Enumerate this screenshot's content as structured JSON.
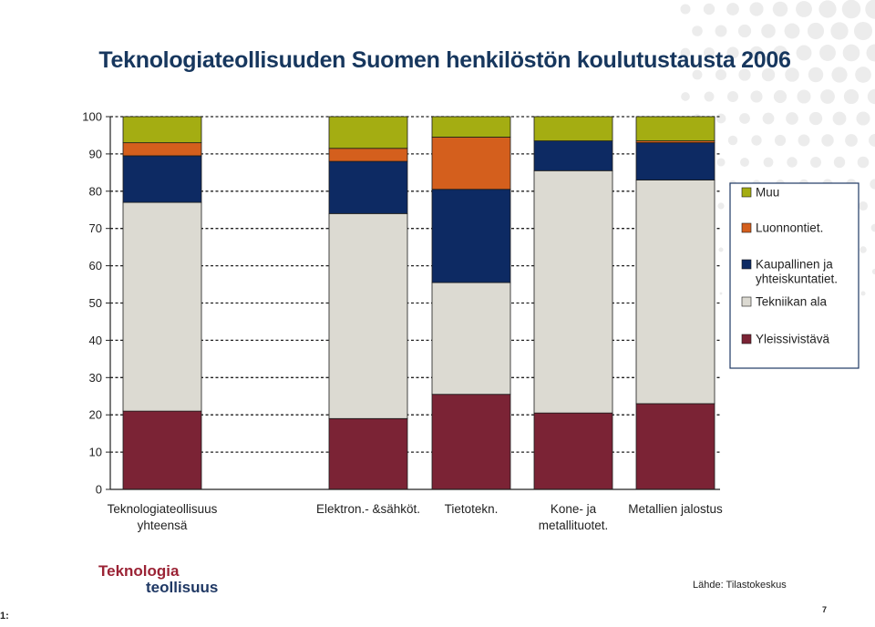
{
  "page": {
    "title": "Teknologiateollisuuden Suomen henkilöstön koulutustausta 2006",
    "source": "Lähde: Tilastokeskus",
    "page_number": "7",
    "corner_marker": "1:",
    "logo": {
      "line1": "Teknologia",
      "line2": "teollisuus"
    }
  },
  "chart_data": {
    "type": "bar",
    "stacked": true,
    "title": "Teknologiateollisuuden Suomen henkilöstön koulutustausta 2006",
    "xlabel": "",
    "ylabel": "",
    "ylim": [
      0,
      100
    ],
    "yticks": [
      0,
      10,
      20,
      30,
      40,
      50,
      60,
      70,
      80,
      90,
      100
    ],
    "grid": true,
    "legend_position": "right",
    "categories": [
      [
        "Teknologiateollisuus",
        "yhteensä"
      ],
      [
        "Elektron.- &sähköt."
      ],
      [
        "Tietotekn."
      ],
      [
        "Kone- ja",
        "metallituotet."
      ],
      [
        "Metallien jalostus"
      ]
    ],
    "series": [
      {
        "name": "Yleissivistävä",
        "color": "#7b2335",
        "values": [
          21,
          19,
          25.5,
          20.5,
          23
        ]
      },
      {
        "name": "Tekniikan ala",
        "color": "#dcdad2",
        "values": [
          56,
          55,
          30,
          65,
          60
        ]
      },
      {
        "name": "Kaupallinen ja yhteiskuntatiet.",
        "color": "#0d2a63",
        "values": [
          12.5,
          14,
          25,
          8,
          10
        ]
      },
      {
        "name": "Luonnontiet.",
        "color": "#d45f1d",
        "values": [
          3.5,
          3.5,
          14,
          0,
          0.5
        ]
      },
      {
        "name": "Muu",
        "color": "#a4ad12",
        "values": [
          7,
          8.5,
          5.5,
          6.5,
          6.5
        ]
      }
    ],
    "legend": [
      {
        "series": "Muu",
        "lines": [
          "Muu"
        ]
      },
      {
        "series": "Luonnontiet.",
        "lines": [
          "Luonnontiet."
        ]
      },
      {
        "series": "Kaupallinen ja yhteiskuntatiet.",
        "lines": [
          "Kaupallinen ja",
          "yhteiskuntatiet."
        ]
      },
      {
        "series": "Tekniikan ala",
        "lines": [
          "Tekniikan ala"
        ]
      },
      {
        "series": "Yleissivistävä",
        "lines": [
          "Yleissivistävä"
        ]
      }
    ]
  }
}
